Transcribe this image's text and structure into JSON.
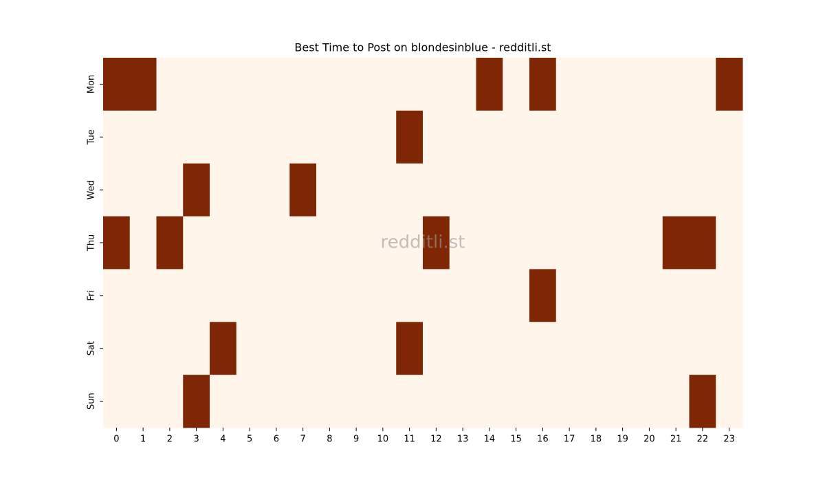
{
  "chart_data": {
    "type": "heatmap",
    "title": "Best Time to Post on blondesinblue - redditli.st",
    "watermark": "redditli.st",
    "x": [
      0,
      1,
      2,
      3,
      4,
      5,
      6,
      7,
      8,
      9,
      10,
      11,
      12,
      13,
      14,
      15,
      16,
      17,
      18,
      19,
      20,
      21,
      22,
      23
    ],
    "categories": [
      "Mon",
      "Tue",
      "Wed",
      "Thu",
      "Fri",
      "Sat",
      "Sun"
    ],
    "values": [
      [
        1,
        1,
        0,
        0,
        0,
        0,
        0,
        0,
        0,
        0,
        0,
        0,
        0,
        0,
        1,
        0,
        1,
        0,
        0,
        0,
        0,
        0,
        0,
        1
      ],
      [
        0,
        0,
        0,
        0,
        0,
        0,
        0,
        0,
        0,
        0,
        0,
        1,
        0,
        0,
        0,
        0,
        0,
        0,
        0,
        0,
        0,
        0,
        0,
        0
      ],
      [
        0,
        0,
        0,
        1,
        0,
        0,
        0,
        1,
        0,
        0,
        0,
        0,
        0,
        0,
        0,
        0,
        0,
        0,
        0,
        0,
        0,
        0,
        0,
        0
      ],
      [
        1,
        0,
        1,
        0,
        0,
        0,
        0,
        0,
        0,
        0,
        0,
        0,
        1,
        0,
        0,
        0,
        0,
        0,
        0,
        0,
        0,
        1,
        1,
        0
      ],
      [
        0,
        0,
        0,
        0,
        0,
        0,
        0,
        0,
        0,
        0,
        0,
        0,
        0,
        0,
        0,
        0,
        1,
        0,
        0,
        0,
        0,
        0,
        0,
        0
      ],
      [
        0,
        0,
        0,
        0,
        1,
        0,
        0,
        0,
        0,
        0,
        0,
        1,
        0,
        0,
        0,
        0,
        0,
        0,
        0,
        0,
        0,
        0,
        0,
        0
      ],
      [
        0,
        0,
        0,
        1,
        0,
        0,
        0,
        0,
        0,
        0,
        0,
        0,
        0,
        0,
        0,
        0,
        0,
        0,
        0,
        0,
        0,
        0,
        1,
        0
      ]
    ],
    "colors": [
      "#fff5eb",
      "#7f2704"
    ]
  }
}
